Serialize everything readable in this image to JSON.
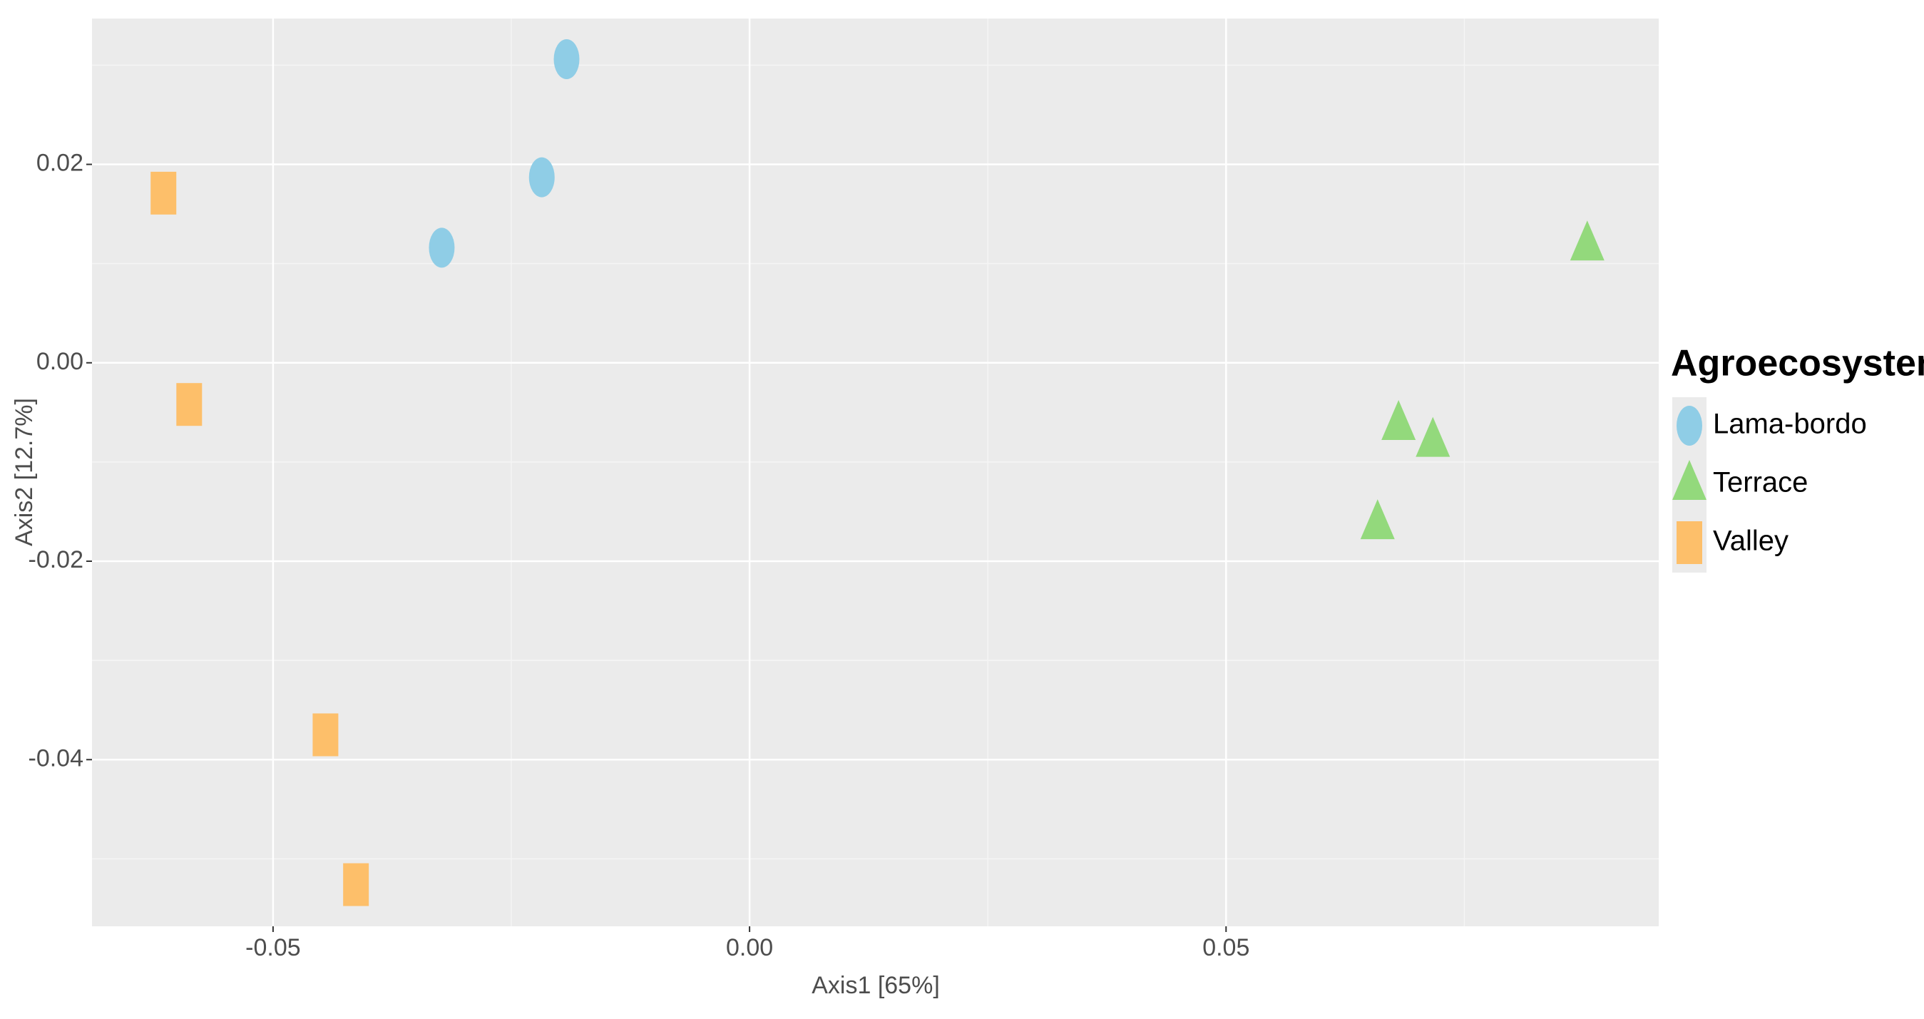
{
  "chart_data": {
    "type": "scatter",
    "x_label": "Axis1  [65%]",
    "y_label": "Axis2  [12.7%]",
    "legend_title": "Agroecosystems",
    "legend_position": "right",
    "xlim": [
      -0.069,
      0.0954
    ],
    "ylim": [
      -0.0568,
      0.0347
    ],
    "xticks": [
      -0.05,
      {
        "value": 0,
        "label": "0.00"
      },
      0.05
    ],
    "yticks": [
      0.02,
      {
        "value": 0,
        "label": "0.00"
      },
      -0.02,
      -0.04
    ],
    "grid": true,
    "series": [
      {
        "name": "Lama-bordo",
        "color": "#8fcde6",
        "marker": "circle",
        "x": [
          -0.0192,
          -0.0218,
          -0.0323
        ],
        "y": [
          0.0306,
          0.0187,
          0.0116
        ]
      },
      {
        "name": "Terrace",
        "color": "#93d97c",
        "marker": "triangle",
        "x": [
          0.0879,
          0.0681,
          0.0717,
          0.0659
        ],
        "y": [
          0.0119,
          -0.0062,
          -0.0079,
          -0.0162
        ]
      },
      {
        "name": "Valley",
        "color": "#fdbf6a",
        "marker": "square",
        "x": [
          -0.0615,
          -0.0588,
          -0.0445,
          -0.0413
        ],
        "y": [
          0.0171,
          -0.0042,
          -0.0375,
          -0.0526
        ]
      }
    ]
  }
}
